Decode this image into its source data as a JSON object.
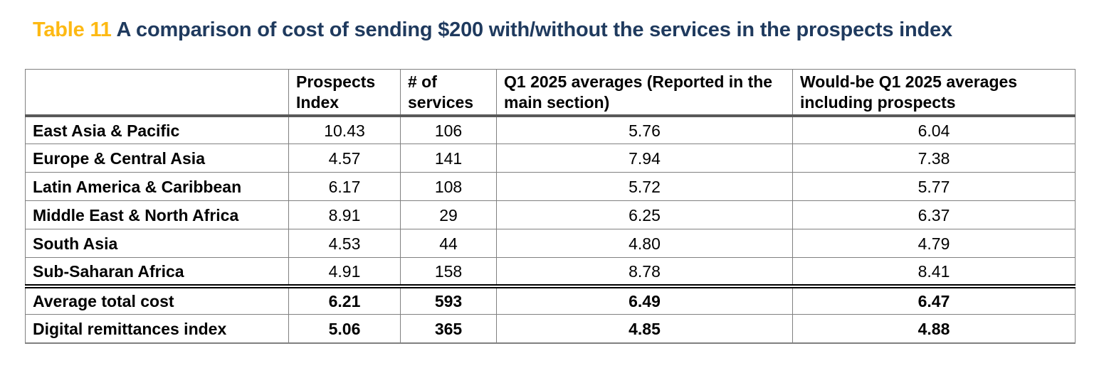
{
  "title": {
    "prefix": "Table 11",
    "text": "A comparison of cost of sending $200 with/without the services in the prospects index"
  },
  "colors": {
    "title_prefix": "#FDB913",
    "title_text": "#1F3A5E",
    "grid_line": "#808080",
    "header_rule": "#595959",
    "summary_rule": "#000000",
    "background": "#FFFFFF"
  },
  "table": {
    "columns": [
      "",
      "Prospects Index",
      "# of services",
      "Q1 2025 averages (Reported in the main section)",
      "Would-be Q1 2025 averages including prospects"
    ],
    "rows": [
      {
        "label": "East Asia & Pacific",
        "values": [
          "10.43",
          "106",
          "5.76",
          "6.04"
        ]
      },
      {
        "label": "Europe & Central Asia",
        "values": [
          "4.57",
          "141",
          "7.94",
          "7.38"
        ]
      },
      {
        "label": "Latin America & Caribbean",
        "values": [
          "6.17",
          "108",
          "5.72",
          "5.77"
        ]
      },
      {
        "label": "Middle East & North Africa",
        "values": [
          "8.91",
          "29",
          "6.25",
          "6.37"
        ]
      },
      {
        "label": "South Asia",
        "values": [
          "4.53",
          "44",
          "4.80",
          "4.79"
        ]
      },
      {
        "label": "Sub-Saharan Africa",
        "values": [
          "4.91",
          "158",
          "8.78",
          "8.41"
        ]
      }
    ],
    "summary_rows": [
      {
        "label": "Average total cost",
        "values": [
          "6.21",
          "593",
          "6.49",
          "6.47"
        ]
      },
      {
        "label": "Digital remittances index",
        "values": [
          "5.06",
          "365",
          "4.85",
          "4.88"
        ]
      }
    ]
  }
}
